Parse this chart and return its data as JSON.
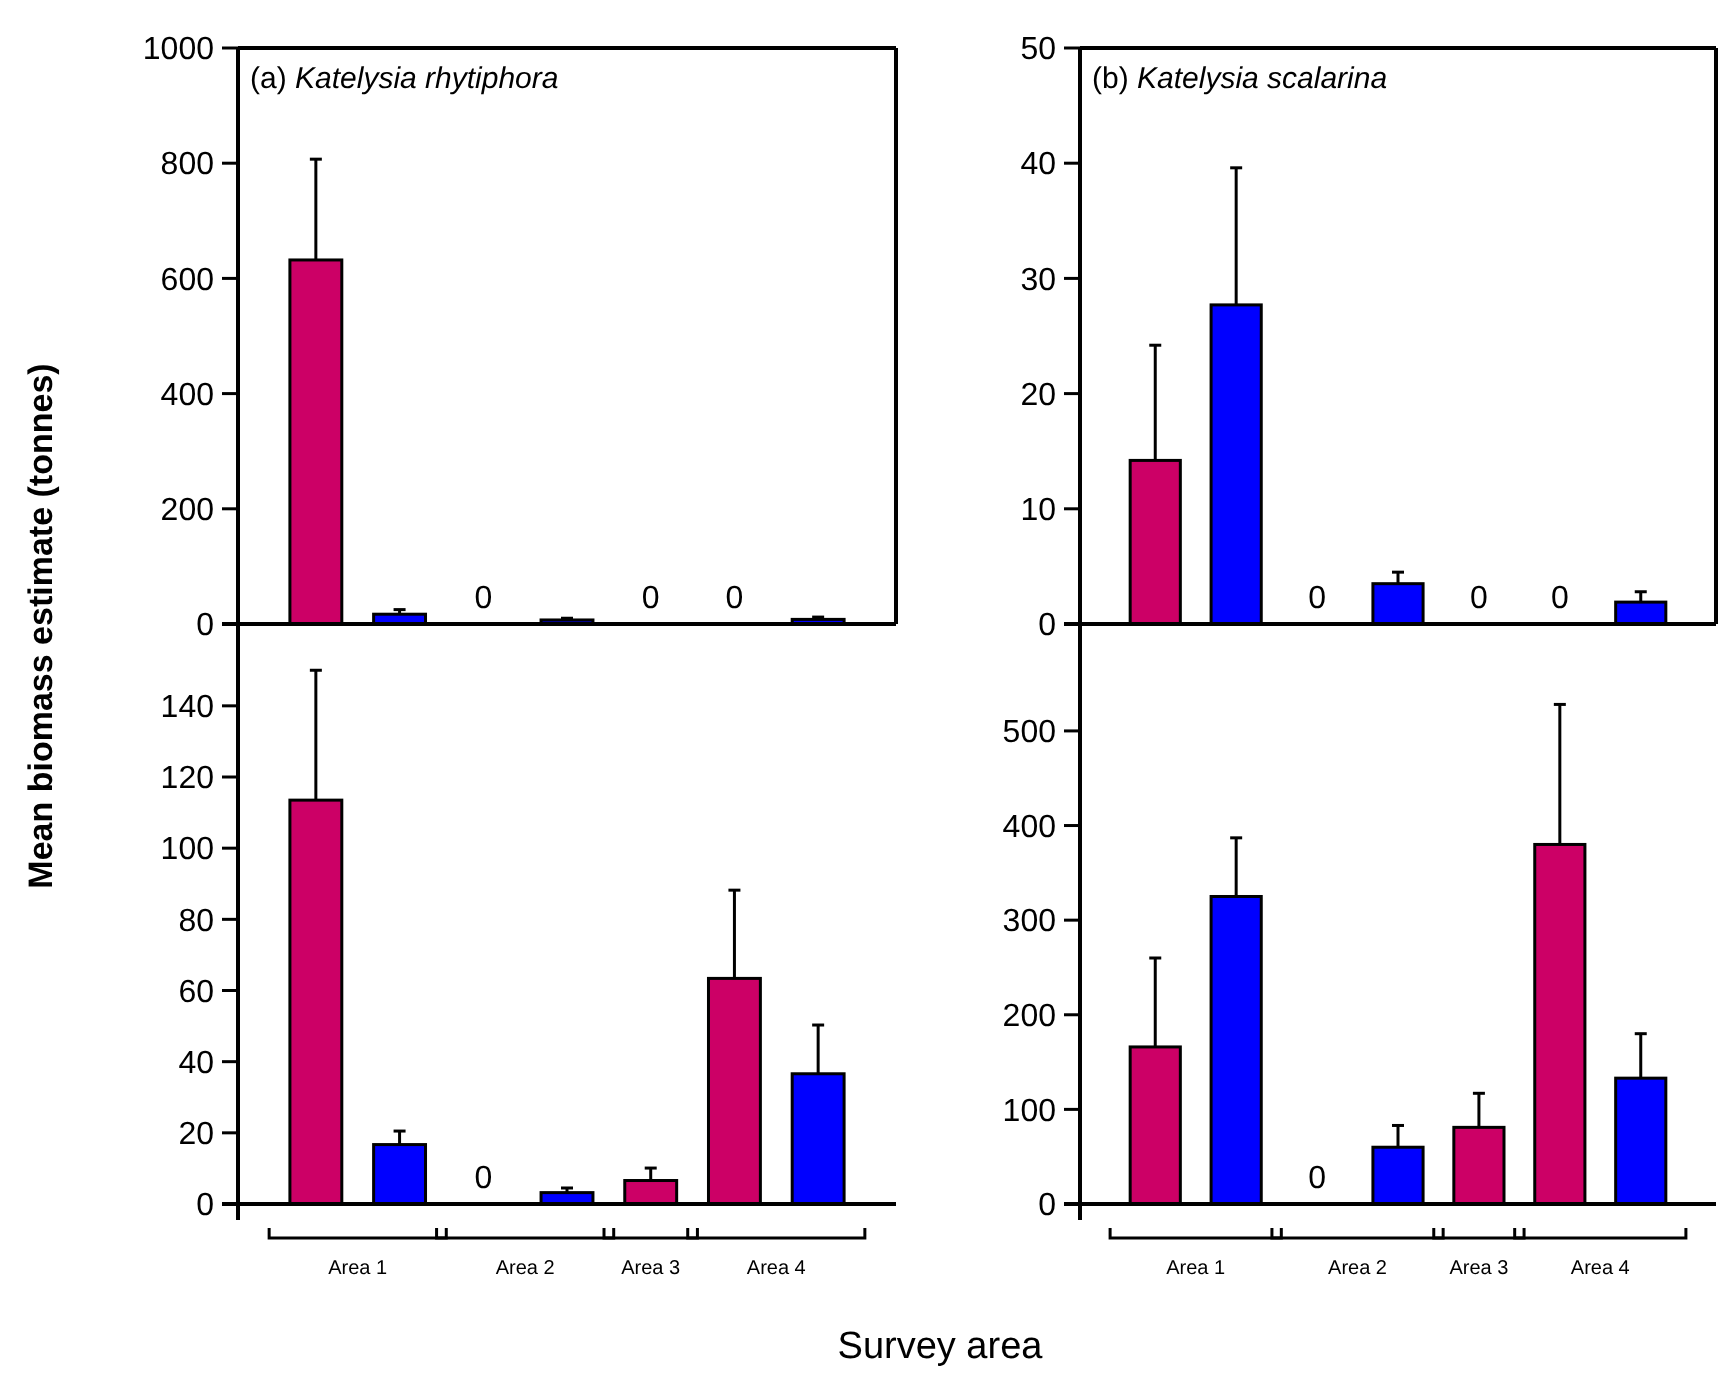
{
  "chart_data": [
    {
      "type": "bar",
      "title": "(a) Katelysia rhytiphora",
      "ylabel": "Mean biomass estimate (tonnes)",
      "categories": [
        null,
        null,
        null,
        null,
        null,
        null,
        null
      ],
      "values": [
        632,
        17,
        0,
        7,
        0,
        0,
        8
      ],
      "colors": [
        "#cc0066",
        "#0000ff",
        "#cc0066",
        "#0000ff",
        "#cc0066",
        "#cc0066",
        "#0000ff"
      ],
      "errors": [
        [
          632,
          807
        ],
        [
          17,
          25
        ],
        null,
        [
          7,
          10
        ],
        null,
        null,
        [
          8,
          12
        ]
      ],
      "value_labels": [
        null,
        null,
        "0",
        null,
        "0",
        "0",
        null
      ],
      "ylim": [
        0,
        1000
      ],
      "yticks": [
        0,
        200,
        400,
        600,
        800,
        1000
      ]
    },
    {
      "type": "bar",
      "title": "(b) Katelysia scalarina",
      "categories": [
        null,
        null,
        null,
        null,
        null,
        null,
        null
      ],
      "values": [
        14.2,
        27.7,
        0,
        3.5,
        0,
        0,
        1.9
      ],
      "colors": [
        "#cc0066",
        "#0000ff",
        "#cc0066",
        "#0000ff",
        "#cc0066",
        "#cc0066",
        "#0000ff"
      ],
      "errors": [
        [
          14.2,
          24.2
        ],
        [
          27.7,
          39.6
        ],
        null,
        [
          3.5,
          4.5
        ],
        null,
        null,
        [
          1.9,
          2.8
        ]
      ],
      "value_labels": [
        null,
        null,
        "0",
        null,
        "0",
        "0",
        null
      ],
      "ylim": [
        0,
        50
      ],
      "yticks": [
        0,
        10,
        20,
        30,
        40,
        50
      ]
    },
    {
      "type": "bar",
      "xlabel": "Survey area",
      "categories": [
        null,
        null,
        null,
        null,
        null,
        null,
        null
      ],
      "values": [
        113.5,
        16.7,
        0,
        3.2,
        6.6,
        63.4,
        36.6
      ],
      "colors": [
        "#cc0066",
        "#0000ff",
        "#cc0066",
        "#0000ff",
        "#cc0066",
        "#cc0066",
        "#0000ff"
      ],
      "errors": [
        [
          113.5,
          150
        ],
        [
          16.7,
          20.5
        ],
        null,
        [
          3.2,
          4.5
        ],
        [
          6.6,
          10.1
        ],
        [
          63.4,
          88.2
        ],
        [
          36.6,
          50.3
        ]
      ],
      "value_labels": [
        null,
        null,
        "0",
        null,
        null,
        null,
        null
      ],
      "ylim": [
        0,
        163
      ],
      "yticks": [
        0,
        20,
        40,
        60,
        80,
        100,
        120,
        140
      ],
      "annotations": [
        "Area 1",
        "Area 2",
        "Area 3",
        "Area 4"
      ]
    },
    {
      "type": "bar",
      "categories": [
        null,
        null,
        null,
        null,
        null,
        null,
        null
      ],
      "values": [
        166,
        325,
        0,
        60,
        81,
        380,
        133
      ],
      "colors": [
        "#cc0066",
        "#0000ff",
        "#cc0066",
        "#0000ff",
        "#cc0066",
        "#cc0066",
        "#0000ff"
      ],
      "errors": [
        [
          166,
          260
        ],
        [
          325,
          387
        ],
        null,
        [
          60,
          83
        ],
        [
          81,
          117
        ],
        [
          380,
          528
        ],
        [
          133,
          180
        ]
      ],
      "value_labels": [
        null,
        null,
        "0",
        null,
        null,
        null,
        null
      ],
      "ylim": [
        0,
        613
      ],
      "yticks": [
        0,
        100,
        200,
        300,
        400,
        500
      ],
      "annotations": [
        "Area 1",
        "Area 2",
        "Area 3",
        "Area 4"
      ]
    }
  ]
}
